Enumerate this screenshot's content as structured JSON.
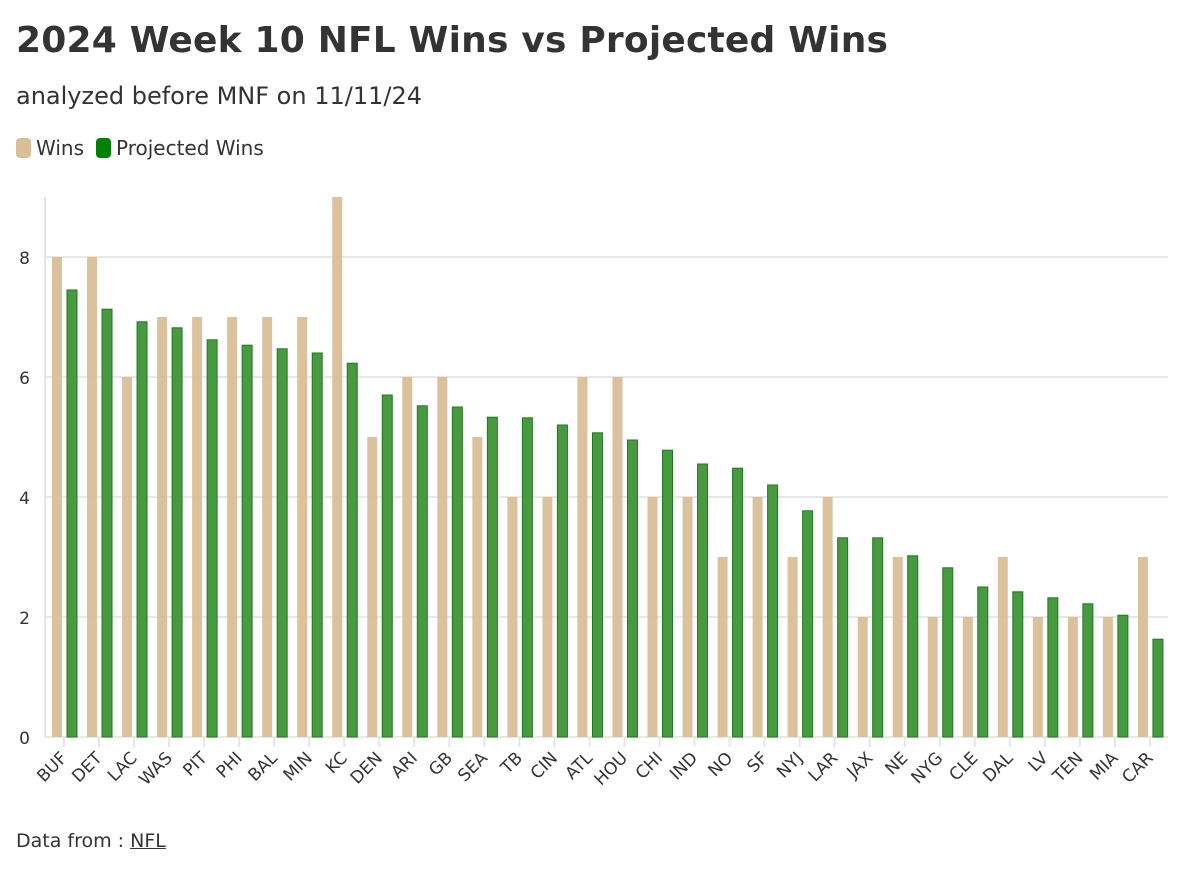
{
  "chart_data": {
    "type": "bar",
    "title": "2024 Week 10 NFL Wins vs Projected Wins",
    "subtitle": "analyzed before MNF on 11/11/24",
    "categories": [
      "BUF",
      "DET",
      "LAC",
      "WAS",
      "PIT",
      "PHI",
      "BAL",
      "MIN",
      "KC",
      "DEN",
      "ARI",
      "GB",
      "SEA",
      "TB",
      "CIN",
      "ATL",
      "HOU",
      "CHI",
      "IND",
      "NO",
      "SF",
      "NYJ",
      "LAR",
      "JAX",
      "NE",
      "NYG",
      "CLE",
      "DAL",
      "LV",
      "TEN",
      "MIA",
      "CAR"
    ],
    "series": [
      {
        "name": "Wins",
        "color": "#d9bf98",
        "values": [
          8,
          8,
          6,
          7,
          7,
          7,
          7,
          7,
          9,
          5,
          6,
          6,
          5,
          4,
          4,
          6,
          6,
          4,
          4,
          3,
          4,
          3,
          4,
          2,
          3,
          2,
          2,
          3,
          2,
          2,
          2,
          3
        ]
      },
      {
        "name": "Projected Wins",
        "color": "#008000",
        "values": [
          7.45,
          7.13,
          6.92,
          6.82,
          6.62,
          6.53,
          6.47,
          6.4,
          6.23,
          5.7,
          5.52,
          5.5,
          5.33,
          5.32,
          5.2,
          5.07,
          4.95,
          4.78,
          4.55,
          4.48,
          4.2,
          3.77,
          3.32,
          3.32,
          3.02,
          2.82,
          2.5,
          2.42,
          2.32,
          2.22,
          2.03,
          1.63
        ]
      }
    ],
    "yticks": [
      0,
      2,
      4,
      6,
      8
    ],
    "ylim": [
      0,
      9
    ],
    "xlabel": "",
    "ylabel": "",
    "grid": true,
    "legend": "top-left"
  },
  "footer": {
    "label": "Data from :",
    "link": "NFL"
  }
}
